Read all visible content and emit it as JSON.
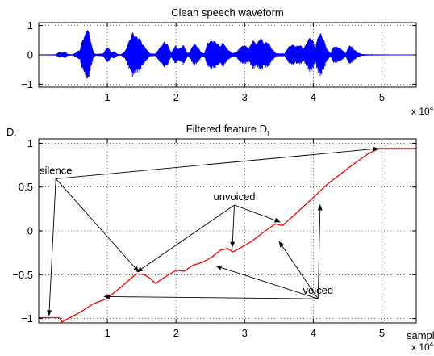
{
  "colors": {
    "waveform": "#0000ff",
    "feature": "#ff0000",
    "axes": "#000000",
    "grid": "#000000"
  },
  "chart_data": [
    {
      "type": "line",
      "title": "Clean speech waveform",
      "xlim": [
        0,
        55000
      ],
      "ylim": [
        -1.1,
        1.1
      ],
      "xticks": [
        10000,
        20000,
        30000,
        40000,
        50000
      ],
      "xtick_labels": [
        "1",
        "2",
        "3",
        "4",
        "5"
      ],
      "yticks": [
        -1,
        0,
        1
      ],
      "ytick_labels": [
        "−1",
        "0",
        "1"
      ],
      "x_multiplier_label": {
        "base": "x 10",
        "exp": "4"
      },
      "grid": true,
      "series": [
        {
          "envelope": [
            [
              0,
              0.015
            ],
            [
              2500,
              0.02
            ],
            [
              3000,
              0.1
            ],
            [
              3400,
              0.07
            ],
            [
              3800,
              0.13
            ],
            [
              4200,
              0.03
            ],
            [
              5000,
              0.02
            ],
            [
              5500,
              0.1
            ],
            [
              6000,
              0.18
            ],
            [
              6400,
              0.55
            ],
            [
              6800,
              0.7
            ],
            [
              7100,
              0.95
            ],
            [
              7300,
              0.78
            ],
            [
              7700,
              0.38
            ],
            [
              8000,
              0.06
            ],
            [
              8400,
              0.03
            ],
            [
              9400,
              0.05
            ],
            [
              10000,
              0.28
            ],
            [
              10600,
              0.09
            ],
            [
              11000,
              0.13
            ],
            [
              11400,
              0.04
            ],
            [
              12000,
              0.02
            ],
            [
              12600,
              0.14
            ],
            [
              13200,
              0.5
            ],
            [
              13700,
              0.78
            ],
            [
              14100,
              0.64
            ],
            [
              14700,
              0.58
            ],
            [
              15200,
              0.35
            ],
            [
              15700,
              0.2
            ],
            [
              16200,
              0.05
            ],
            [
              17000,
              0.04
            ],
            [
              17600,
              0.24
            ],
            [
              18300,
              0.45
            ],
            [
              18800,
              0.35
            ],
            [
              19300,
              0.08
            ],
            [
              19900,
              0.32
            ],
            [
              20400,
              0.2
            ],
            [
              21100,
              0.34
            ],
            [
              21700,
              0.05
            ],
            [
              22100,
              0.15
            ],
            [
              22600,
              0.4
            ],
            [
              23100,
              0.3
            ],
            [
              23600,
              0.12
            ],
            [
              24100,
              0.04
            ],
            [
              24600,
              0.42
            ],
            [
              25300,
              0.5
            ],
            [
              25800,
              0.45
            ],
            [
              26400,
              0.3
            ],
            [
              26900,
              0.44
            ],
            [
              27400,
              0.22
            ],
            [
              28200,
              0.06
            ],
            [
              28800,
              0.09
            ],
            [
              29400,
              0.27
            ],
            [
              30000,
              0.34
            ],
            [
              30600,
              0.22
            ],
            [
              31200,
              0.5
            ],
            [
              31800,
              0.38
            ],
            [
              32300,
              0.6
            ],
            [
              32800,
              0.42
            ],
            [
              33400,
              0.45
            ],
            [
              34000,
              0.2
            ],
            [
              34600,
              0.05
            ],
            [
              35200,
              0.05
            ],
            [
              35800,
              0.05
            ],
            [
              36400,
              0.28
            ],
            [
              36900,
              0.36
            ],
            [
              37500,
              0.3
            ],
            [
              38100,
              0.34
            ],
            [
              38600,
              0.22
            ],
            [
              39100,
              0.45
            ],
            [
              39500,
              0.6
            ],
            [
              39900,
              0.52
            ],
            [
              40300,
              0.25
            ],
            [
              40700,
              0.65
            ],
            [
              41100,
              0.74
            ],
            [
              41500,
              0.55
            ],
            [
              42000,
              0.2
            ],
            [
              42500,
              0.06
            ],
            [
              43000,
              0.3
            ],
            [
              43600,
              0.27
            ],
            [
              44200,
              0.18
            ],
            [
              44700,
              0.06
            ],
            [
              45300,
              0.35
            ],
            [
              45900,
              0.2
            ],
            [
              46500,
              0.08
            ],
            [
              47100,
              0.03
            ],
            [
              48000,
              0.02
            ],
            [
              55000,
              0.01
            ]
          ]
        }
      ]
    },
    {
      "type": "line",
      "title": {
        "base": "Filtered feature D",
        "sub": "f"
      },
      "ylabel": {
        "base": "D",
        "sub": "f"
      },
      "xlabel": "sample",
      "xlim": [
        0,
        55000
      ],
      "ylim": [
        -1.05,
        1.05
      ],
      "xticks": [
        10000,
        20000,
        30000,
        40000,
        50000
      ],
      "xtick_labels": [
        "1",
        "2",
        "3",
        "4",
        "5"
      ],
      "yticks": [
        -1,
        -0.5,
        0,
        0.5,
        1
      ],
      "ytick_labels": [
        "−1",
        "−0.5",
        "0",
        "0.5",
        "1"
      ],
      "x_multiplier_label": {
        "base": "x 10",
        "exp": "4"
      },
      "grid": true,
      "series": [
        {
          "values": [
            [
              0,
              -0.99
            ],
            [
              3000,
              -0.99
            ],
            [
              3400,
              -1.04
            ],
            [
              3800,
              -1.02
            ],
            [
              6000,
              -0.93
            ],
            [
              8000,
              -0.83
            ],
            [
              9000,
              -0.8
            ],
            [
              9800,
              -0.78
            ],
            [
              12000,
              -0.64
            ],
            [
              14200,
              -0.49
            ],
            [
              15400,
              -0.5
            ],
            [
              16200,
              -0.54
            ],
            [
              17000,
              -0.6
            ],
            [
              18500,
              -0.52
            ],
            [
              20000,
              -0.45
            ],
            [
              21200,
              -0.46
            ],
            [
              22500,
              -0.39
            ],
            [
              23800,
              -0.36
            ],
            [
              25200,
              -0.3
            ],
            [
              26500,
              -0.22
            ],
            [
              27500,
              -0.2
            ],
            [
              28300,
              -0.24
            ],
            [
              29000,
              -0.21
            ],
            [
              31000,
              -0.12
            ],
            [
              33000,
              0.0
            ],
            [
              34500,
              0.08
            ],
            [
              35500,
              0.06
            ],
            [
              37500,
              0.2
            ],
            [
              40000,
              0.38
            ],
            [
              42000,
              0.53
            ],
            [
              44000,
              0.65
            ],
            [
              46000,
              0.77
            ],
            [
              48000,
              0.88
            ],
            [
              49600,
              0.94
            ],
            [
              55000,
              0.94
            ]
          ]
        }
      ],
      "annotations": [
        {
          "text": "silence",
          "anchor": [
            2500,
            0.65
          ],
          "targets": [
            [
              49500,
              0.94
            ],
            [
              1500,
              -0.97
            ],
            [
              14600,
              -0.47
            ]
          ]
        },
        {
          "text": "unvoiced",
          "anchor": [
            28500,
            0.35
          ],
          "targets": [
            [
              14300,
              -0.47
            ],
            [
              28200,
              -0.19
            ],
            [
              35200,
              0.1
            ]
          ]
        },
        {
          "text": "voiced",
          "anchor": [
            40700,
            -0.72
          ],
          "targets": [
            [
              41000,
              0.3
            ],
            [
              35000,
              -0.12
            ],
            [
              25800,
              -0.4
            ],
            [
              9500,
              -0.75
            ]
          ]
        }
      ]
    }
  ]
}
